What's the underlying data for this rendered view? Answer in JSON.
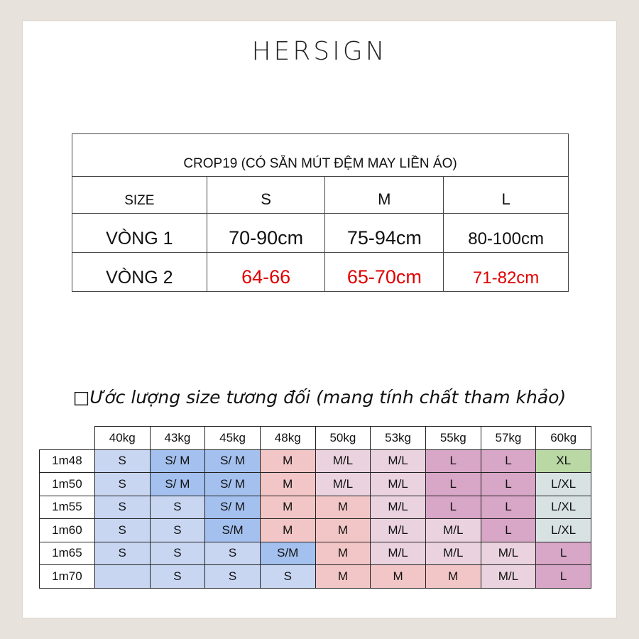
{
  "brand": "HERSIGN",
  "size_table": {
    "title": "CROP19 (CÓ SẴN MÚT ĐỆM MAY LIỀN ÁO)",
    "header": [
      "SIZE",
      "S",
      "M",
      "L"
    ],
    "rows": [
      {
        "label": "VÒNG 1",
        "values": [
          "70-90cm",
          "75-94cm",
          "80-100cm"
        ]
      },
      {
        "label": "VÒNG 2",
        "values": [
          "64-66",
          "65-70cm",
          "71-82cm"
        ]
      }
    ],
    "highlight_color": "#e00000"
  },
  "estimate_title": "□Ước lượng size tương đối (mang tính chất tham khảo)",
  "grid": {
    "weights": [
      "40kg",
      "43kg",
      "45kg",
      "48kg",
      "50kg",
      "53kg",
      "55kg",
      "57kg",
      "60kg"
    ],
    "rows": [
      {
        "height": "1m48",
        "sizes": [
          "S",
          "S/ M",
          "S/ M",
          "M",
          "M/L",
          "M/L",
          "L",
          "L",
          "XL"
        ],
        "colors": [
          "blue1",
          "blue2",
          "blue2",
          "red",
          "pink",
          "pink",
          "mauve",
          "mauve",
          "green"
        ]
      },
      {
        "height": "1m50",
        "sizes": [
          "S",
          "S/ M",
          "S/ M",
          "M",
          "M/L",
          "M/L",
          "L",
          "L",
          "L/XL"
        ],
        "colors": [
          "blue1",
          "blue2",
          "blue2",
          "red",
          "pink",
          "pink",
          "mauve",
          "mauve",
          "gray"
        ]
      },
      {
        "height": "1m55",
        "sizes": [
          "S",
          "S",
          "S/ M",
          "M",
          "M",
          "M/L",
          "L",
          "L",
          "L/XL"
        ],
        "colors": [
          "blue1",
          "blue1",
          "blue2",
          "red",
          "red",
          "pink",
          "mauve",
          "mauve",
          "gray"
        ]
      },
      {
        "height": "1m60",
        "sizes": [
          "S",
          "S",
          "S/M",
          "M",
          "M",
          "M/L",
          "M/L",
          "L",
          "L/XL"
        ],
        "colors": [
          "blue1",
          "blue1",
          "blue2",
          "red",
          "red",
          "pink",
          "pink",
          "mauve",
          "gray"
        ]
      },
      {
        "height": "1m65",
        "sizes": [
          "S",
          "S",
          "S",
          "S/M",
          "M",
          "M/L",
          "M/L",
          "M/L",
          "L"
        ],
        "colors": [
          "blue1",
          "blue1",
          "blue1",
          "blue2",
          "red",
          "pink",
          "pink",
          "pink",
          "mauve"
        ]
      },
      {
        "height": "1m70",
        "sizes": [
          "",
          "S",
          "S",
          "S",
          "M",
          "M",
          "M",
          "M/L",
          "L"
        ],
        "colors": [
          "blue1",
          "blue1",
          "blue1",
          "blue1",
          "red",
          "red",
          "red",
          "pink",
          "mauve"
        ]
      }
    ],
    "palette": {
      "blue1": "#c8d6f2",
      "blue2": "#a4c0ee",
      "red": "#f2c6c6",
      "pink": "#ead3de",
      "mauve": "#d8a6c6",
      "green": "#b9d8a4",
      "gray": "#d8e2e2"
    }
  }
}
